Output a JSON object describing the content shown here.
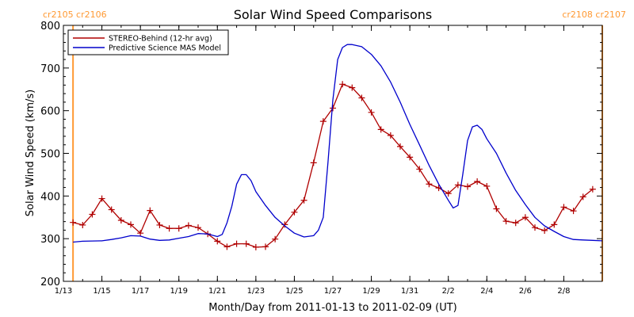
{
  "chart_data": {
    "type": "line",
    "title": "Solar Wind Speed Comparisons",
    "xlabel": "Month/Day from 2011-01-13 to 2011-02-09 (UT)",
    "ylabel": "Solar Wind Speed (km/s)",
    "ylim": [
      200,
      800
    ],
    "xlim": [
      "2011-01-13",
      "2011-02-10"
    ],
    "y_ticks": [
      200,
      300,
      400,
      500,
      600,
      700,
      800
    ],
    "x_ticks": [
      {
        "date": "2011-01-13",
        "label": "1/13"
      },
      {
        "date": "2011-01-15",
        "label": "1/15"
      },
      {
        "date": "2011-01-17",
        "label": "1/17"
      },
      {
        "date": "2011-01-19",
        "label": "1/19"
      },
      {
        "date": "2011-01-21",
        "label": "1/21"
      },
      {
        "date": "2011-01-23",
        "label": "1/23"
      },
      {
        "date": "2011-01-25",
        "label": "1/25"
      },
      {
        "date": "2011-01-27",
        "label": "1/27"
      },
      {
        "date": "2011-01-29",
        "label": "1/29"
      },
      {
        "date": "2011-01-31",
        "label": "1/31"
      },
      {
        "date": "2011-02-02",
        "label": "2/2"
      },
      {
        "date": "2011-02-04",
        "label": "2/4"
      },
      {
        "date": "2011-02-06",
        "label": "2/6"
      },
      {
        "date": "2011-02-08",
        "label": "2/8"
      }
    ],
    "carrington_markers": [
      {
        "date": "2011-01-13 12:00",
        "label": "cr2105 cr2106",
        "label_align": "left",
        "color": "#ff9933"
      },
      {
        "date": "2011-02-10",
        "label": "cr2108 cr2107",
        "label_align": "right",
        "color": "#ff9933"
      }
    ],
    "legend_position": "top-left",
    "series": [
      {
        "name": "STEREO-Behind (12-hr avg)",
        "color": "#b00000",
        "marker": "plus",
        "points": [
          [
            "2011-01-13 12:00",
            338
          ],
          [
            "2011-01-14 00:00",
            332
          ],
          [
            "2011-01-14 12:00",
            357
          ],
          [
            "2011-01-15 00:00",
            394
          ],
          [
            "2011-01-15 12:00",
            368
          ],
          [
            "2011-01-16 00:00",
            343
          ],
          [
            "2011-01-16 12:00",
            333
          ],
          [
            "2011-01-17 00:00",
            313
          ],
          [
            "2011-01-17 12:00",
            366
          ],
          [
            "2011-01-18 00:00",
            332
          ],
          [
            "2011-01-18 12:00",
            324
          ],
          [
            "2011-01-19 00:00",
            324
          ],
          [
            "2011-01-19 12:00",
            331
          ],
          [
            "2011-01-20 00:00",
            326
          ],
          [
            "2011-01-20 12:00",
            311
          ],
          [
            "2011-01-21 00:00",
            294
          ],
          [
            "2011-01-21 12:00",
            281
          ],
          [
            "2011-01-22 00:00",
            288
          ],
          [
            "2011-01-22 12:00",
            288
          ],
          [
            "2011-01-23 00:00",
            280
          ],
          [
            "2011-01-23 12:00",
            281
          ],
          [
            "2011-01-24 00:00",
            299
          ],
          [
            "2011-01-24 12:00",
            333
          ],
          [
            "2011-01-25 00:00",
            362
          ],
          [
            "2011-01-25 12:00",
            390
          ],
          [
            "2011-01-26 00:00",
            478
          ],
          [
            "2011-01-26 12:00",
            575
          ],
          [
            "2011-01-27 00:00",
            606
          ],
          [
            "2011-01-27 12:00",
            662
          ],
          [
            "2011-01-28 00:00",
            654
          ],
          [
            "2011-01-28 12:00",
            630
          ],
          [
            "2011-01-29 00:00",
            596
          ],
          [
            "2011-01-29 12:00",
            556
          ],
          [
            "2011-01-30 00:00",
            542
          ],
          [
            "2011-01-30 12:00",
            516
          ],
          [
            "2011-01-31 00:00",
            491
          ],
          [
            "2011-01-31 12:00",
            463
          ],
          [
            "2011-02-01 00:00",
            428
          ],
          [
            "2011-02-01 12:00",
            419
          ],
          [
            "2011-02-02 00:00",
            406
          ],
          [
            "2011-02-02 12:00",
            426
          ],
          [
            "2011-02-03 00:00",
            422
          ],
          [
            "2011-02-03 12:00",
            434
          ],
          [
            "2011-02-04 00:00",
            423
          ],
          [
            "2011-02-04 12:00",
            370
          ],
          [
            "2011-02-05 00:00",
            341
          ],
          [
            "2011-02-05 12:00",
            337
          ],
          [
            "2011-02-06 00:00",
            350
          ],
          [
            "2011-02-06 12:00",
            326
          ],
          [
            "2011-02-07 00:00",
            319
          ],
          [
            "2011-02-07 12:00",
            333
          ],
          [
            "2011-02-08 00:00",
            374
          ],
          [
            "2011-02-08 12:00",
            365
          ],
          [
            "2011-02-09 00:00",
            398
          ],
          [
            "2011-02-09 12:00",
            416
          ]
        ]
      },
      {
        "name": "Predictive Science MAS Model",
        "color": "#0000cc",
        "marker": "none",
        "points": [
          [
            "2011-01-13 12:00",
            292
          ],
          [
            "2011-01-14 00:00",
            294
          ],
          [
            "2011-01-15 00:00",
            295
          ],
          [
            "2011-01-15 12:00",
            298
          ],
          [
            "2011-01-16 00:00",
            302
          ],
          [
            "2011-01-16 12:00",
            307
          ],
          [
            "2011-01-17 00:00",
            306
          ],
          [
            "2011-01-17 12:00",
            299
          ],
          [
            "2011-01-18 00:00",
            296
          ],
          [
            "2011-01-18 12:00",
            297
          ],
          [
            "2011-01-19 00:00",
            301
          ],
          [
            "2011-01-19 12:00",
            305
          ],
          [
            "2011-01-20 00:00",
            312
          ],
          [
            "2011-01-20 12:00",
            311
          ],
          [
            "2011-01-21 00:00",
            305
          ],
          [
            "2011-01-21 06:00",
            310
          ],
          [
            "2011-01-21 12:00",
            337
          ],
          [
            "2011-01-21 18:00",
            376
          ],
          [
            "2011-01-22 00:00",
            428
          ],
          [
            "2011-01-22 06:00",
            450
          ],
          [
            "2011-01-22 12:00",
            450
          ],
          [
            "2011-01-22 18:00",
            436
          ],
          [
            "2011-01-23 00:00",
            410
          ],
          [
            "2011-01-23 12:00",
            378
          ],
          [
            "2011-01-24 00:00",
            350
          ],
          [
            "2011-01-24 12:00",
            330
          ],
          [
            "2011-01-25 00:00",
            313
          ],
          [
            "2011-01-25 12:00",
            304
          ],
          [
            "2011-01-26 00:00",
            307
          ],
          [
            "2011-01-26 06:00",
            320
          ],
          [
            "2011-01-26 12:00",
            350
          ],
          [
            "2011-01-26 18:00",
            480
          ],
          [
            "2011-01-27 00:00",
            625
          ],
          [
            "2011-01-27 06:00",
            720
          ],
          [
            "2011-01-27 12:00",
            748
          ],
          [
            "2011-01-27 18:00",
            755
          ],
          [
            "2011-01-28 00:00",
            755
          ],
          [
            "2011-01-28 12:00",
            750
          ],
          [
            "2011-01-29 00:00",
            732
          ],
          [
            "2011-01-29 12:00",
            705
          ],
          [
            "2011-01-30 00:00",
            667
          ],
          [
            "2011-01-30 12:00",
            620
          ],
          [
            "2011-01-31 00:00",
            568
          ],
          [
            "2011-01-31 12:00",
            520
          ],
          [
            "2011-02-01 00:00",
            472
          ],
          [
            "2011-02-01 12:00",
            428
          ],
          [
            "2011-02-02 00:00",
            390
          ],
          [
            "2011-02-02 06:00",
            372
          ],
          [
            "2011-02-02 12:00",
            378
          ],
          [
            "2011-02-02 18:00",
            450
          ],
          [
            "2011-02-03 00:00",
            530
          ],
          [
            "2011-02-03 06:00",
            562
          ],
          [
            "2011-02-03 12:00",
            566
          ],
          [
            "2011-02-03 18:00",
            556
          ],
          [
            "2011-02-04 00:00",
            534
          ],
          [
            "2011-02-04 12:00",
            500
          ],
          [
            "2011-02-05 00:00",
            454
          ],
          [
            "2011-02-05 12:00",
            413
          ],
          [
            "2011-02-06 00:00",
            380
          ],
          [
            "2011-02-06 12:00",
            350
          ],
          [
            "2011-02-07 00:00",
            330
          ],
          [
            "2011-02-07 12:00",
            317
          ],
          [
            "2011-02-08 00:00",
            305
          ],
          [
            "2011-02-08 12:00",
            298
          ],
          [
            "2011-02-09 00:00",
            297
          ],
          [
            "2011-02-09 12:00",
            296
          ],
          [
            "2011-02-10 00:00",
            295
          ]
        ]
      }
    ]
  }
}
